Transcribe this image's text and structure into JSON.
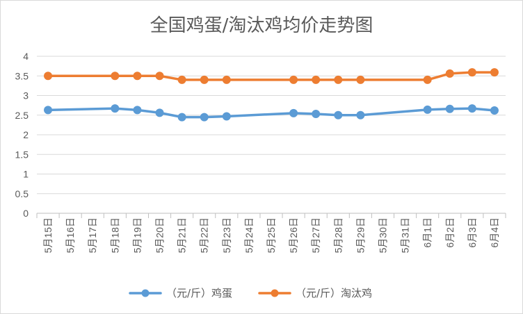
{
  "chart_data": {
    "type": "line",
    "title": "全国鸡蛋/淘汰鸡均价走势图",
    "xlabel": "",
    "ylabel": "",
    "categories": [
      "5月15日",
      "5月16日",
      "5月17日",
      "5月18日",
      "5月19日",
      "5月20日",
      "5月21日",
      "5月22日",
      "5月23日",
      "5月24日",
      "5月25日",
      "5月26日",
      "5月27日",
      "5月28日",
      "5月29日",
      "5月30日",
      "5月31日",
      "6月1日",
      "6月2日",
      "6月3日",
      "6月4日"
    ],
    "ylim": [
      0,
      4
    ],
    "yticks": [
      "0",
      "0.5",
      "1",
      "1.5",
      "2",
      "2.5",
      "3",
      "3.5",
      "4"
    ],
    "grid": "horizontal",
    "legend_position": "bottom",
    "series": [
      {
        "name": "（元/斤）鸡蛋",
        "color": "#5b9bd5",
        "values": [
          2.63,
          null,
          null,
          2.67,
          2.63,
          2.56,
          2.45,
          2.45,
          2.47,
          null,
          null,
          2.55,
          2.53,
          2.5,
          2.5,
          null,
          null,
          2.64,
          2.66,
          2.67,
          2.62
        ]
      },
      {
        "name": "（元/斤）淘汰鸡",
        "color": "#ed7d31",
        "values": [
          3.5,
          null,
          null,
          3.5,
          3.5,
          3.5,
          3.4,
          3.4,
          3.4,
          null,
          null,
          3.4,
          3.4,
          3.4,
          3.4,
          null,
          null,
          3.4,
          3.56,
          3.59,
          3.59
        ]
      }
    ]
  }
}
